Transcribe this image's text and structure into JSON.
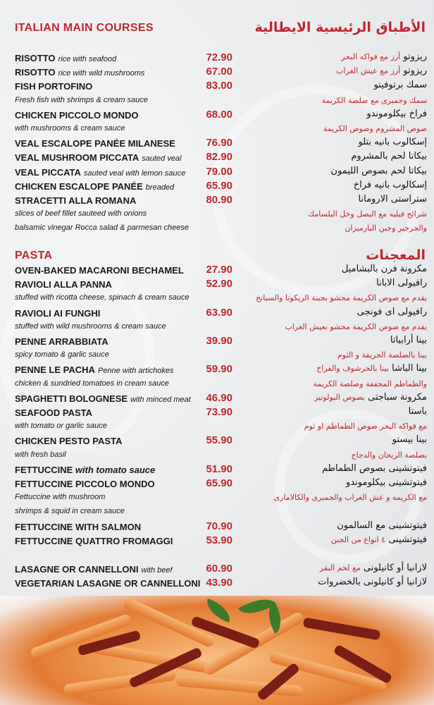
{
  "colors": {
    "accent": "#c0272d",
    "text": "#1a1a1a",
    "background": "#e9eaec"
  },
  "sections": [
    {
      "title_en": "ITALIAN MAIN COURSES",
      "title_ar": "الأطباق الرئيسية الايطالية",
      "rows": [
        {
          "name": "RISOTTO",
          "desc": "rice with seafood",
          "price": "72.90",
          "ar": "ريزوتو",
          "ar_red": "أرز مع فواكه البحر"
        },
        {
          "name": "RISOTTO",
          "desc": "rice with wild mushrooms",
          "price": "67.00",
          "ar": "ريزوتو",
          "ar_red": "أرز مع عيش الغراب"
        },
        {
          "name": "FISH PORTOFINO",
          "price": "83.00",
          "ar": "سمك برتوفينو"
        },
        {
          "line": "Fresh fish with shrimps & cream sauce",
          "ar_line": "سمك وجمبرى مع صلصة الكريمة"
        },
        {
          "name": "CHICKEN PICCOLO MONDO",
          "price": "68.00",
          "ar": "فراخ بيكلوموندو"
        },
        {
          "line": "with mushrooms & cream sauce",
          "ar_line": "صوص المشروم وصوص الكريمة"
        },
        {
          "name": "VEAL ESCALOPE PANÉE MILANESE",
          "price": "76.90",
          "ar": "إسكالوب بانيه بتلو"
        },
        {
          "name": "VEAL MUSHROOM PICCATA",
          "desc": "sauted veal",
          "price": "82.90",
          "ar": "بيكاتا لحم بالمشروم"
        },
        {
          "name": "VEAL PICCATA",
          "desc": "sauted veal with lemon sauce",
          "price": "79.00",
          "ar": "بيكاتا لحم بصوص الليمون"
        },
        {
          "name": "CHICKEN ESCALOPE PANÉE",
          "desc": "breaded",
          "price": "65.90",
          "ar": "إسكالوب بانيه فراخ"
        },
        {
          "name": "STRACETTI ALLA ROMANA",
          "price": "80.90",
          "ar": "ستراستى الارومانا"
        },
        {
          "line": "slices of beef fillet sauteed with onions",
          "ar_line": "شرائح فيليه مع البصل وخل البلسامك"
        },
        {
          "line": "balsamic vinegar Rocca salad & parmesan cheese",
          "ar_line": "والجرجير وجبن البارميزان"
        }
      ]
    },
    {
      "title_en": "PASTA",
      "title_ar": "المعجنات",
      "rows": [
        {
          "name": "OVEN-BAKED MACARONI BECHAMEL",
          "price": "27.90",
          "ar": "مكرونة فرن بالبشاميل"
        },
        {
          "name": "RAVIOLI ALLA PANNA",
          "price": "52.90",
          "ar": "رافيولى الابانا"
        },
        {
          "line": "stuffed with ricotta cheese, spinach & cream sauce",
          "ar_line": "يقدم مع صوص الكريمة محشو بجبنة الريكوتا والسبانخ"
        },
        {
          "name": "RAVIOLI AI FUNGHI",
          "price": "63.90",
          "ar": "رافيولى اى فونجى"
        },
        {
          "line": "stuffed with wild mushrooms & cream sauce",
          "ar_line": "يقدم مع صوص الكريمة محشو بعيش الغراب"
        },
        {
          "name": "PENNE ARRABBIATA",
          "price": "39.90",
          "ar": "بينا أرابياتا"
        },
        {
          "line": "spicy tomato & garlic sauce",
          "ar_line": "بينا بالصلصة الحريفة و الثوم"
        },
        {
          "name": "PENNE LE PACHA",
          "desc": "Penne with artichokes",
          "price": "59.90",
          "ar": "بينا الباشا",
          "ar_red": "بينا بالخرشوف والفراخ"
        },
        {
          "line": "chicken & sundried tomatoes in cream sauce",
          "ar_line": "والطماطم المجففة وصلصة الكريمة"
        },
        {
          "name": "SPAGHETTI BOLOGNESE",
          "desc": "with minced meat",
          "price": "46.90",
          "ar": "مكرونة سباجتى",
          "ar_red": "بصوص البولونيز"
        },
        {
          "name": "SEAFOOD PASTA",
          "price": "73.90",
          "ar": "باستا"
        },
        {
          "line": "with tomato or garlic sauce",
          "ar_line": "مع فواكه البحر صوص الطماطم او ثوم"
        },
        {
          "name": "CHICKEN PESTO PASTA",
          "price": "55.90",
          "ar": "بينا بيستو"
        },
        {
          "line": "with fresh basil",
          "ar_line": "بصلصة الريحان والدجاج"
        },
        {
          "name": "FETTUCCINE",
          "name_italic": "with tomato sauce",
          "price": "51.90",
          "ar": "فيتوتشينى بصوص الطماطم"
        },
        {
          "name": "FETTUCCINE PICCOLO MONDO",
          "price": "65.90",
          "ar": "فيتوتشينى بيكلوموندو"
        },
        {
          "line": "Fettuccine with mushroom",
          "ar_line": "مع الكريمة و عش الغراب والجمبرى والكالامارى"
        },
        {
          "line": " shrimps & squid in cream sauce"
        },
        {
          "name": "FETTUCCINE WITH SALMON",
          "price": "70.90",
          "ar": "فيتوتشينى مع السالمون"
        },
        {
          "name": "FETTUCCINE QUATTRO FROMAGGI",
          "price": "53.90",
          "ar": "فيتوتشينى",
          "ar_red": "٤ انواع من الجبن"
        },
        {},
        {
          "name": "LASAGNE OR CANNELLONI",
          "desc": "with beef",
          "price": "60.90",
          "ar": "لازانيا أو كانيلونى",
          "ar_red": "مع لحم البقر"
        },
        {
          "name": "VEGETARIAN LASAGNE OR CANNELLONI",
          "price": "43.90",
          "ar": "لازانيا أو كانيلونى بالخضروات"
        }
      ]
    }
  ]
}
